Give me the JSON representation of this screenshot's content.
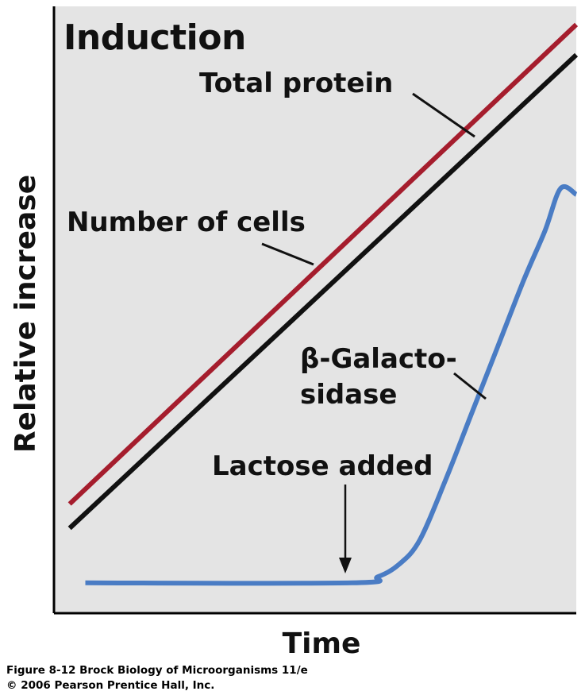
{
  "chart_data": {
    "type": "line",
    "title": "Induction",
    "xlabel": "Time",
    "ylabel": "Relative increase",
    "xlim": [
      0,
      100
    ],
    "ylim": [
      0,
      100
    ],
    "grid": false,
    "legend": "none",
    "background_color": "#e4e4e4",
    "series": [
      {
        "name": "Total protein",
        "color": "#a51d2d",
        "x": [
          3,
          100
        ],
        "y": [
          18,
          97
        ]
      },
      {
        "name": "Number of cells",
        "color": "#111111",
        "x": [
          3,
          100
        ],
        "y": [
          14,
          92
        ]
      },
      {
        "name": "β-Galacto-sidase",
        "color": "#4a7cc4",
        "x": [
          6,
          57,
          62,
          66,
          70,
          75,
          80,
          85,
          90,
          94,
          97,
          100
        ],
        "y": [
          5,
          5,
          6,
          8,
          12,
          22,
          33,
          44,
          55,
          63,
          70,
          69
        ]
      }
    ],
    "annotations": [
      {
        "text": "Total protein",
        "points_to": "Total protein"
      },
      {
        "text": "Number of cells",
        "points_to": "Number of cells"
      },
      {
        "text_lines": [
          "β-Galacto-",
          "sidase"
        ],
        "points_to": "β-Galacto-sidase"
      },
      {
        "text": "Lactose added",
        "arrow_x": 56
      }
    ]
  },
  "caption": {
    "line1": "Figure 8-12  Brock Biology of Microorganisms 11/e",
    "line2": "© 2006 Pearson Prentice Hall, Inc."
  }
}
